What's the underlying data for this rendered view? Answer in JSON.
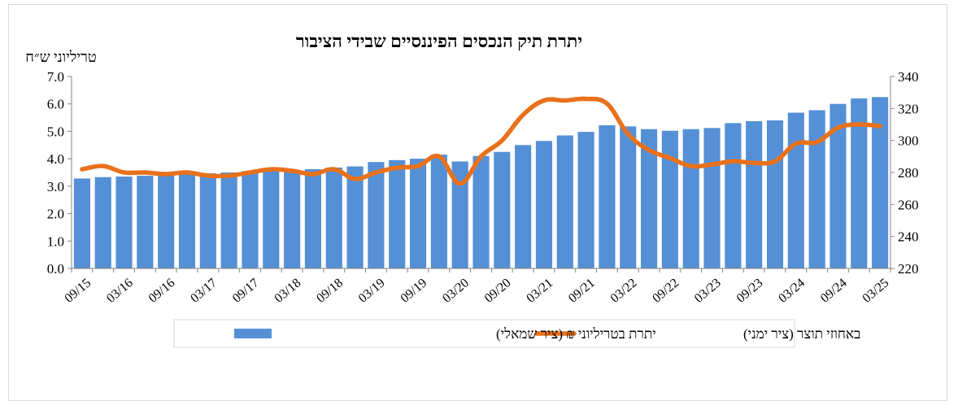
{
  "chart_data": {
    "type": "bar",
    "title": "יתרת תיק הנכסים הפיננסיים שבידי הציבור",
    "left_axis_unit": "טריליוני ש״ח",
    "left_axis": {
      "min": 0,
      "max": 7,
      "ticks": [
        "0.0",
        "1.0",
        "2.0",
        "3.0",
        "4.0",
        "5.0",
        "6.0",
        "7.0"
      ]
    },
    "right_axis": {
      "min": 220,
      "max": 340,
      "ticks": [
        "220",
        "240",
        "260",
        "280",
        "300",
        "320",
        "340"
      ]
    },
    "x_tick_labels": [
      "09/15",
      "03/16",
      "09/16",
      "03/17",
      "09/17",
      "03/18",
      "09/18",
      "03/19",
      "09/19",
      "03/20",
      "09/20",
      "03/21",
      "09/21",
      "03/22",
      "09/22",
      "03/23",
      "09/23",
      "03/24",
      "09/24",
      "03/25"
    ],
    "quarters": [
      "09/15",
      "12/15",
      "03/16",
      "06/16",
      "09/16",
      "12/16",
      "03/17",
      "06/17",
      "09/17",
      "12/17",
      "03/18",
      "06/18",
      "09/18",
      "12/18",
      "03/19",
      "06/19",
      "09/19",
      "12/19",
      "03/20",
      "06/20",
      "09/20",
      "12/20",
      "03/21",
      "06/21",
      "09/21",
      "12/21",
      "03/22",
      "06/22",
      "09/22",
      "12/22",
      "03/23",
      "06/23",
      "09/23",
      "12/23",
      "03/24",
      "06/24",
      "09/24",
      "12/24",
      "03/25"
    ],
    "series": [
      {
        "name": "יתרת בטריליוני ₪ (ציר שמאלי)",
        "axis": "left",
        "kind": "bar",
        "color": "#5590d6",
        "values": [
          3.28,
          3.33,
          3.35,
          3.38,
          3.42,
          3.45,
          3.47,
          3.5,
          3.55,
          3.62,
          3.58,
          3.62,
          3.68,
          3.72,
          3.88,
          3.95,
          4.0,
          4.15,
          3.9,
          4.1,
          4.25,
          4.5,
          4.65,
          4.85,
          4.98,
          5.22,
          5.18,
          5.08,
          5.02,
          5.08,
          5.12,
          5.3,
          5.37,
          5.4,
          5.68,
          5.77,
          6.0,
          6.2,
          6.25
        ]
      },
      {
        "name": "באחוזי תוצר (ציר ימני)",
        "axis": "right",
        "kind": "line",
        "color": "#e8711c",
        "values": [
          282,
          284,
          280,
          280,
          279,
          280,
          278,
          278,
          280,
          282,
          281,
          279,
          282,
          276,
          280,
          283,
          284,
          290,
          273,
          290,
          300,
          316,
          325,
          325,
          326,
          323,
          304,
          294,
          289,
          284,
          285,
          287,
          286,
          287,
          298,
          299,
          308,
          310,
          309
        ]
      }
    ],
    "legend": {
      "placement": "bottom"
    }
  }
}
